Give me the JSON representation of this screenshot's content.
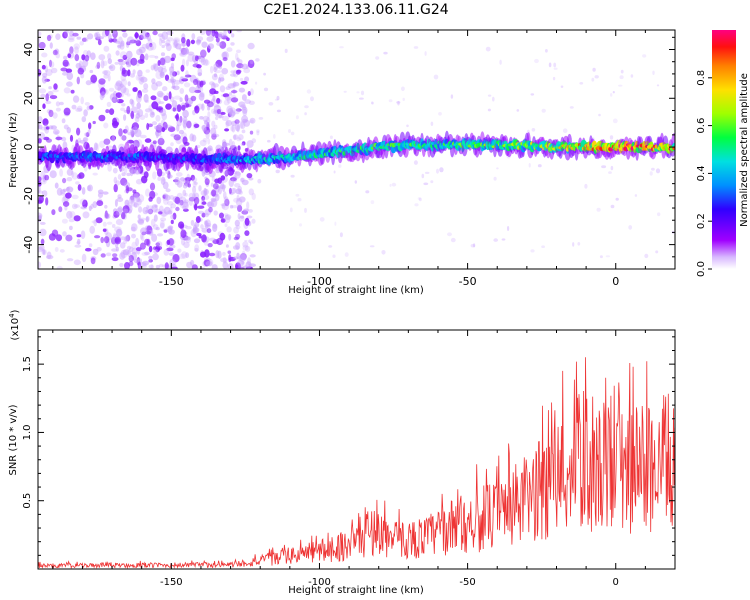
{
  "title": "C2E1.2024.133.06.11.G24",
  "colors": {
    "snr_line": "#ee3333",
    "spectrogram_low": "#a050f0",
    "colorbar": [
      "#a000ff",
      "#3000ff",
      "#0080ff",
      "#00e0e0",
      "#00ff60",
      "#a0ff00",
      "#ffe000",
      "#ff8000",
      "#ff0000",
      "#ff0080"
    ]
  },
  "chart_data": [
    {
      "type": "heatmap",
      "xlabel": "Height of straight line (km)",
      "ylabel": "Frequency (Hz)",
      "xlim": [
        -195,
        20
      ],
      "ylim": [
        -50,
        48
      ],
      "x_ticks": [
        -150,
        -100,
        -50,
        0
      ],
      "y_ticks": [
        -40,
        -20,
        0,
        20,
        40
      ],
      "colorbar": {
        "label": "Normalized spectral amplitude",
        "range": [
          0,
          1
        ],
        "ticks": [
          0.0,
          0.2,
          0.4,
          0.6,
          0.8
        ]
      },
      "ridge": {
        "x": [
          -195,
          -180,
          -160,
          -140,
          -120,
          -100,
          -80,
          -60,
          -40,
          -20,
          0,
          20
        ],
        "y": [
          -4,
          -4,
          -4,
          -5,
          -5,
          -3,
          0,
          1,
          1,
          0,
          0,
          0
        ],
        "intensity": [
          0.3,
          0.35,
          0.3,
          0.3,
          0.45,
          0.5,
          0.55,
          0.55,
          0.6,
          0.7,
          0.95,
          0.8
        ]
      },
      "noise_band_x": [
        -195,
        -122
      ]
    },
    {
      "type": "line",
      "xlabel": "Height of straight line (km)",
      "ylabel": "SNR (10 * v/v)",
      "y_multiplier": "(x10",
      "y_multiplier_exp": "4",
      "y_multiplier_close": ")",
      "xlim": [
        -195,
        20
      ],
      "ylim": [
        0,
        17500
      ],
      "x_ticks": [
        -150,
        -100,
        -50,
        0
      ],
      "y_ticks": [
        5000,
        10000,
        15000
      ],
      "y_tick_labels": [
        "0.5",
        "1.0",
        "1.5"
      ],
      "series": [
        {
          "envelope_x": [
            -195,
            -170,
            -130,
            -120,
            -100,
            -90,
            -82,
            -75,
            -65,
            -50,
            -40,
            -30,
            -20,
            -10,
            0,
            10,
            20
          ],
          "envelope_y": [
            400,
            450,
            500,
            1000,
            2200,
            3000,
            4800,
            3500,
            3800,
            5800,
            6500,
            8500,
            11000,
            13500,
            11500,
            12500,
            13000
          ]
        }
      ]
    }
  ]
}
